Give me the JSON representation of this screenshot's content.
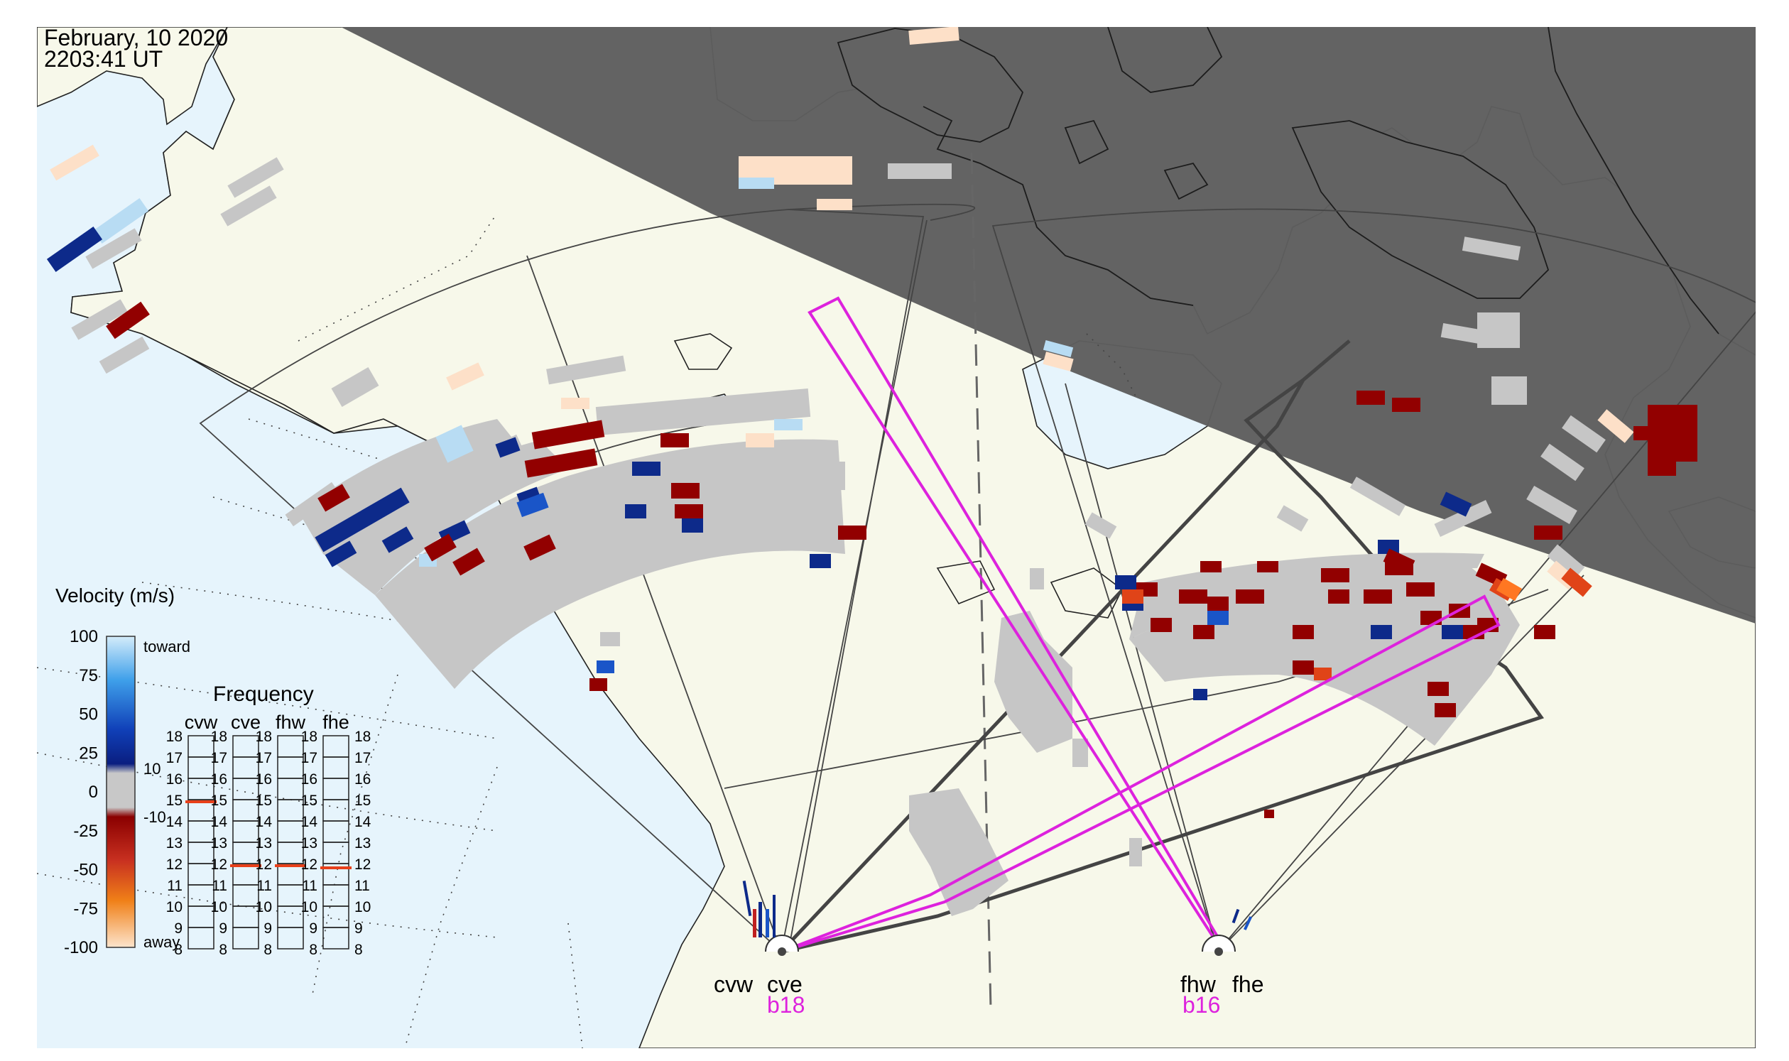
{
  "header": {
    "date": "February, 10 2020",
    "time": "2203:41 UT"
  },
  "colors": {
    "ocean": "#e6f4fc",
    "land": "#f7f8ea",
    "night": "#5e5e5e",
    "gray_cell": "#c6c6c6",
    "beam": "#dd22dd",
    "fov_line": "#444444",
    "toward_light": "#b8dcf3",
    "toward_dark": "#0d2a8a",
    "away_light": "#fde2c8",
    "away_dark": "#920000",
    "away_orange": "#ee6611"
  },
  "legend": {
    "title": "Velocity (m/s)",
    "ticks": [
      "100",
      "75",
      "50",
      "25",
      "0",
      "-25",
      "-50",
      "-75",
      "-100"
    ],
    "inner_ticks": [
      "10",
      "-10"
    ],
    "toward_label": "toward",
    "away_label": "away",
    "scale_range": [
      -100,
      100
    ]
  },
  "frequency": {
    "title": "Frequency",
    "columns": [
      "cvw",
      "cve",
      "fhw",
      "fhe"
    ],
    "scale": [
      "18",
      "17",
      "16",
      "15",
      "14",
      "13",
      "12",
      "11",
      "10",
      "9",
      "8"
    ],
    "values_mhz": {
      "cvw": 14.9,
      "cve": 11.9,
      "fhw": 11.9,
      "fhe": 11.8
    }
  },
  "radars": {
    "left": {
      "west": "cvw",
      "east": "cve",
      "beam": "b18"
    },
    "right": {
      "west": "fhw",
      "east": "fhe",
      "beam": "b16"
    }
  },
  "icons": [
    "radar-site-marker-icon"
  ]
}
